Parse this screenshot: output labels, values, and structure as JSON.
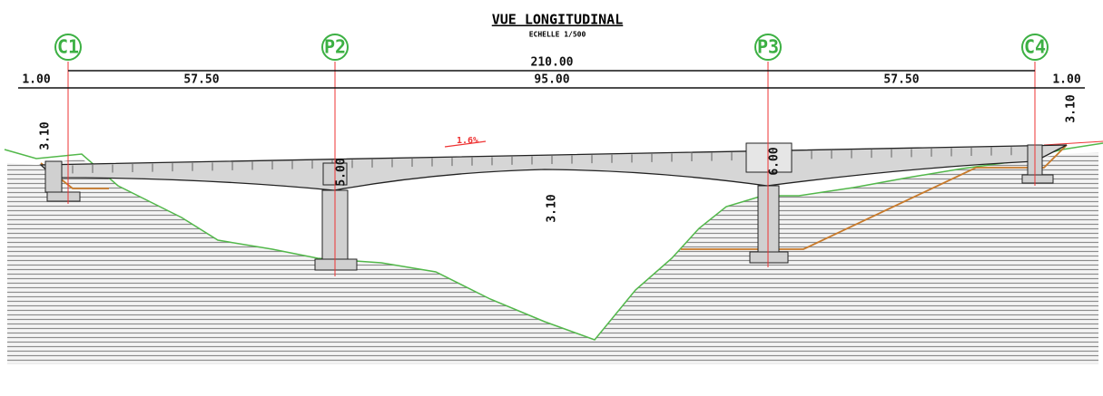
{
  "header": {
    "title": "VUE LONGITUDINAL",
    "subtitle": "ECHELLE 1/500"
  },
  "supports": [
    {
      "label": "C1"
    },
    {
      "label": "P2"
    },
    {
      "label": "P3"
    },
    {
      "label": "C4"
    }
  ],
  "dimensions": {
    "total": "210.00",
    "left_overhang": "1.00",
    "span_1": "57.50",
    "span_2": "95.00",
    "span_3": "57.50",
    "right_overhang": "1.00"
  },
  "heights": {
    "left_abutment": "3.10",
    "right_abutment": "3.10",
    "midspan": "3.10",
    "pier_p2": "5.00",
    "pier_p3": "6.00"
  },
  "slope": "1.6%"
}
